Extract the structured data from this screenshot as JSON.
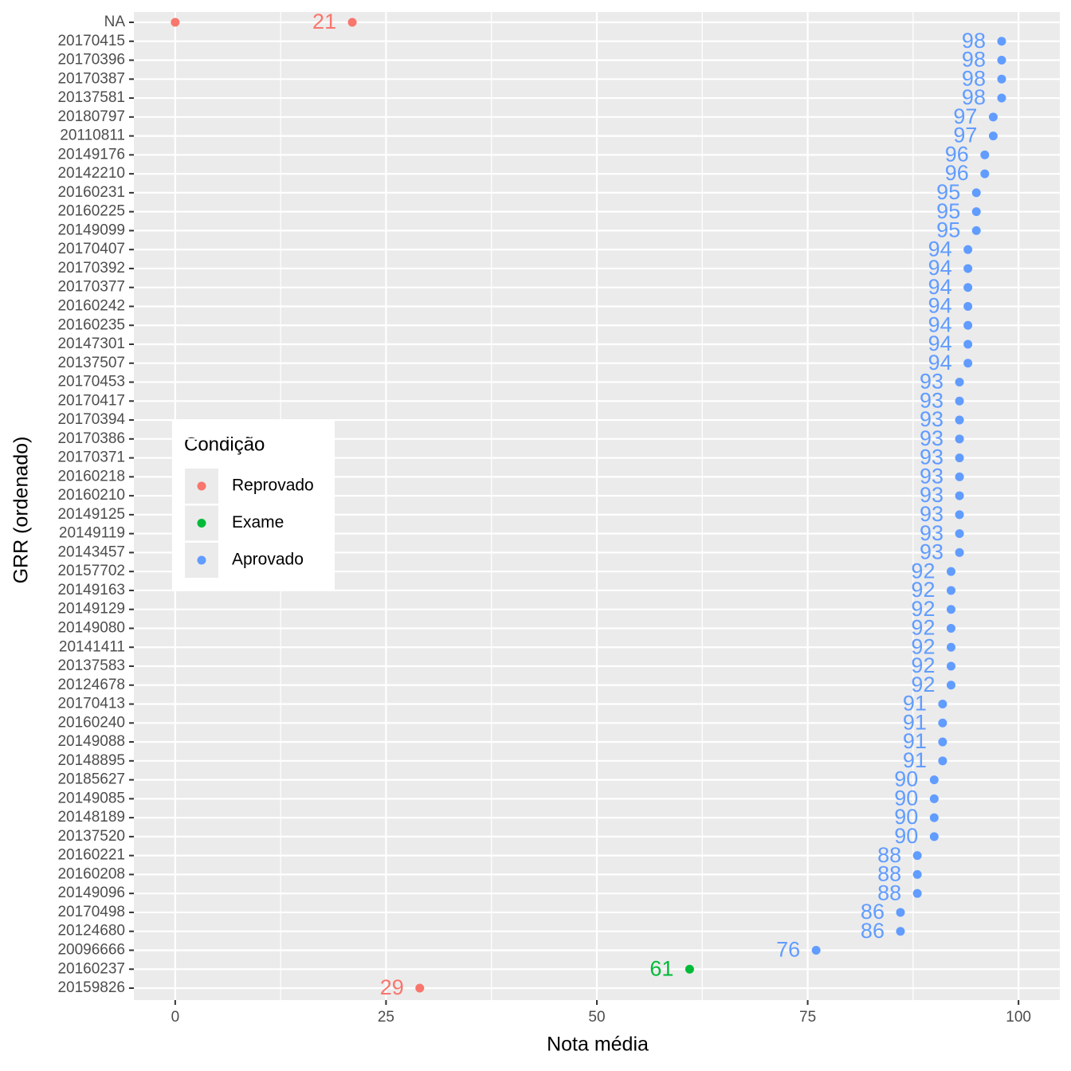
{
  "chart_data": {
    "type": "scatter",
    "x_label": "Nota média",
    "y_label": "GRR (ordenado)",
    "legend_title": "Condição",
    "categories": [
      "NA",
      "20170415",
      "20170396",
      "20170387",
      "20137581",
      "20180797",
      "20110811",
      "20149176",
      "20142210",
      "20160231",
      "20160225",
      "20149099",
      "20170407",
      "20170392",
      "20170377",
      "20160242",
      "20160235",
      "20147301",
      "20137507",
      "20170453",
      "20170417",
      "20170394",
      "20170386",
      "20170371",
      "20160218",
      "20160210",
      "20149125",
      "20149119",
      "20143457",
      "20157702",
      "20149163",
      "20149129",
      "20149080",
      "20141411",
      "20137583",
      "20124678",
      "20170413",
      "20160240",
      "20149088",
      "20148895",
      "20185627",
      "20149085",
      "20148189",
      "20137520",
      "20160221",
      "20160208",
      "20149096",
      "20170498",
      "20124680",
      "20096666",
      "20160237",
      "20159826"
    ],
    "xlim": [
      -4.9,
      104.9
    ],
    "xticks": [
      0,
      25,
      50,
      75,
      100
    ],
    "grid": true,
    "series": [
      {
        "name": "Reprovado",
        "color": "#F8766D",
        "y": [
          "NA",
          "NA",
          "20159826"
        ],
        "values": [
          0,
          21,
          29
        ],
        "labeled": [
          false,
          true,
          true
        ]
      },
      {
        "name": "Exame",
        "color": "#00BA38",
        "y": [
          "20160237"
        ],
        "values": [
          61
        ],
        "labeled": [
          true
        ]
      },
      {
        "name": "Aprovado",
        "color": "#619CFF",
        "y": [
          "20170415",
          "20170396",
          "20170387",
          "20137581",
          "20180797",
          "20110811",
          "20149176",
          "20142210",
          "20160231",
          "20160225",
          "20149099",
          "20170407",
          "20170392",
          "20170377",
          "20160242",
          "20160235",
          "20147301",
          "20137507",
          "20170453",
          "20170417",
          "20170394",
          "20170386",
          "20170371",
          "20160218",
          "20160210",
          "20149125",
          "20149119",
          "20143457",
          "20157702",
          "20149163",
          "20149129",
          "20149080",
          "20141411",
          "20137583",
          "20124678",
          "20170413",
          "20160240",
          "20149088",
          "20148895",
          "20185627",
          "20149085",
          "20148189",
          "20137520",
          "20160221",
          "20160208",
          "20149096",
          "20170498",
          "20124680",
          "20096666"
        ],
        "values": [
          98,
          98,
          98,
          98,
          97,
          97,
          96,
          96,
          95,
          95,
          95,
          94,
          94,
          94,
          94,
          94,
          94,
          94,
          93,
          93,
          93,
          93,
          93,
          93,
          93,
          93,
          93,
          93,
          92,
          92,
          92,
          92,
          92,
          92,
          92,
          91,
          91,
          91,
          91,
          90,
          90,
          90,
          90,
          88,
          88,
          88,
          86,
          86,
          76
        ],
        "labeled": [
          true,
          true,
          true,
          true,
          true,
          true,
          true,
          true,
          true,
          true,
          true,
          true,
          true,
          true,
          true,
          true,
          true,
          true,
          true,
          true,
          true,
          true,
          true,
          true,
          true,
          true,
          true,
          true,
          true,
          true,
          true,
          true,
          true,
          true,
          true,
          true,
          true,
          true,
          true,
          true,
          true,
          true,
          true,
          true,
          true,
          true,
          true,
          true,
          true
        ]
      }
    ]
  }
}
